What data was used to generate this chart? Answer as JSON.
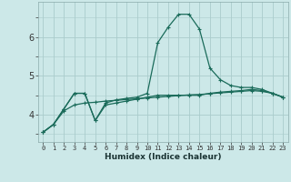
{
  "xlabel": "Humidex (Indice chaleur)",
  "bg_color": "#cce8e8",
  "grid_color": "#aacccc",
  "line_color": "#1a6b5a",
  "x": [
    0,
    1,
    2,
    3,
    4,
    5,
    6,
    7,
    8,
    9,
    10,
    11,
    12,
    13,
    14,
    15,
    16,
    17,
    18,
    19,
    20,
    21,
    22,
    23
  ],
  "line1": [
    3.55,
    3.75,
    4.15,
    4.55,
    4.55,
    3.85,
    4.25,
    4.3,
    4.35,
    4.4,
    4.45,
    4.5,
    4.5,
    4.5,
    4.5,
    4.5,
    4.55,
    4.58,
    4.6,
    4.62,
    4.65,
    4.62,
    4.55,
    4.45
  ],
  "line2": [
    3.55,
    3.75,
    4.15,
    4.55,
    4.55,
    3.85,
    4.3,
    4.38,
    4.42,
    4.45,
    4.55,
    5.85,
    6.25,
    6.58,
    6.58,
    6.2,
    5.2,
    4.9,
    4.75,
    4.7,
    4.7,
    4.65,
    4.55,
    4.45
  ],
  "line3": [
    3.55,
    3.75,
    4.1,
    4.25,
    4.3,
    4.32,
    4.35,
    4.37,
    4.39,
    4.41,
    4.43,
    4.45,
    4.47,
    4.49,
    4.51,
    4.52,
    4.54,
    4.56,
    4.58,
    4.6,
    4.62,
    4.6,
    4.55,
    4.45
  ],
  "ylim": [
    3.3,
    6.9
  ],
  "yticks": [
    4,
    5,
    6
  ],
  "xticks": [
    0,
    1,
    2,
    3,
    4,
    5,
    6,
    7,
    8,
    9,
    10,
    11,
    12,
    13,
    14,
    15,
    16,
    17,
    18,
    19,
    20,
    21,
    22,
    23
  ]
}
